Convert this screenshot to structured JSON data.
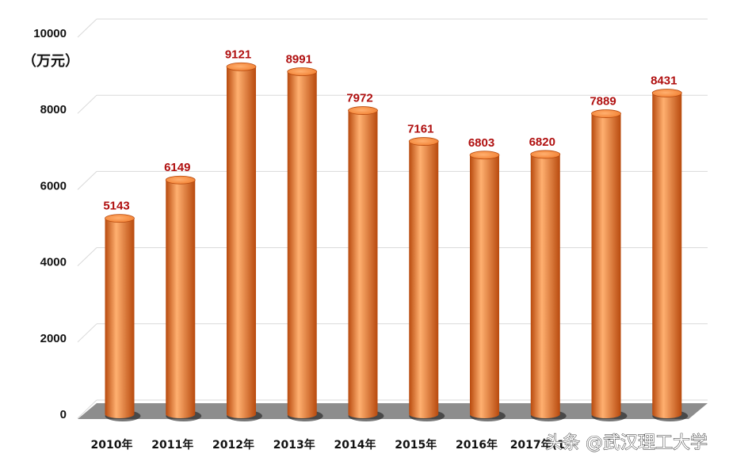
{
  "chart_data": {
    "type": "bar",
    "title": "",
    "xlabel": "",
    "ylabel": "（万元）",
    "ylim": [
      0,
      10000
    ],
    "yticks": [
      0,
      2000,
      4000,
      6000,
      8000,
      10000
    ],
    "grid": true,
    "categories": [
      "2010年",
      "2011年",
      "2012年",
      "2013年",
      "2014年",
      "2015年",
      "2016年",
      "2017年(1",
      "",
      ""
    ],
    "values": [
      5143,
      6149,
      9121,
      8991,
      7972,
      7161,
      6803,
      6820,
      7889,
      8431
    ],
    "data_labels": [
      "5143",
      "6149",
      "9121",
      "8991",
      "7972",
      "7161",
      "6803",
      "6820",
      "7889",
      "8431"
    ],
    "colors": {
      "bar": "#f07a2a",
      "bar_dark": "#b84a0e",
      "bar_light": "#ffb070",
      "label": "#b01010",
      "grid": "#d9d9d9"
    }
  },
  "watermark": "头条 @武汉理工大学"
}
